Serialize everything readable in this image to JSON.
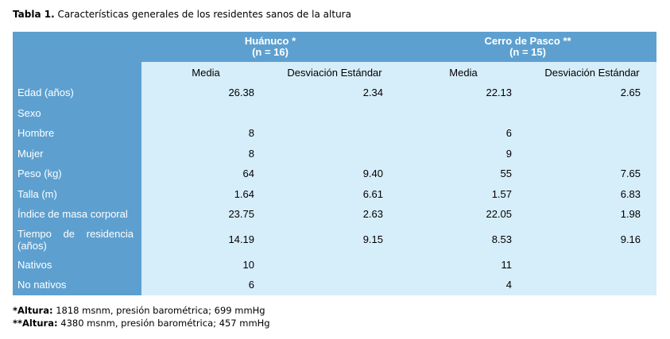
{
  "title": {
    "label": "Tabla 1.",
    "text": "Características generales de los residentes sanos de la altura"
  },
  "groups": [
    {
      "name": "Huánuco *",
      "n": "(n = 16)"
    },
    {
      "name": "Cerro de Pasco  **",
      "n": "(n = 15)"
    }
  ],
  "subheaders": [
    "Media",
    "Desviación Estándar",
    "Media",
    "Desviación Estándar"
  ],
  "rows": [
    {
      "label": "Edad (años)",
      "values": [
        "26.38",
        "2.34",
        "22.13",
        "2.65"
      ]
    },
    {
      "label": "Sexo",
      "values": [
        "",
        "",
        "",
        ""
      ]
    },
    {
      "label": "Hombre",
      "values": [
        "8",
        "",
        "6",
        ""
      ]
    },
    {
      "label": "Mujer",
      "values": [
        "8",
        "",
        "9",
        ""
      ]
    },
    {
      "label": "Peso (kg)",
      "values": [
        "64",
        "9.40",
        "55",
        "7.65"
      ]
    },
    {
      "label": "Talla (m)",
      "values": [
        "1.64",
        "6.61",
        "1.57",
        "6.83"
      ]
    },
    {
      "label": "Índice de masa corporal",
      "values": [
        "23.75",
        "2.63",
        "22.05",
        "1.98"
      ]
    },
    {
      "label": "Tiempo de residencia (años)",
      "values": [
        "14.19",
        "9.15",
        "8.53",
        "9.16"
      ]
    },
    {
      "label": "Nativos",
      "values": [
        "10",
        "",
        "11",
        ""
      ]
    },
    {
      "label": "No nativos",
      "values": [
        "6",
        "",
        "4",
        ""
      ]
    }
  ],
  "footnotes": [
    {
      "mark": "*Altura:",
      "text": " 1818 msnm, presión barométrica; 699 mmHg"
    },
    {
      "mark": "**Altura:",
      "text": " 4380 msnm, presión barométrica; 457 mmHg"
    }
  ]
}
